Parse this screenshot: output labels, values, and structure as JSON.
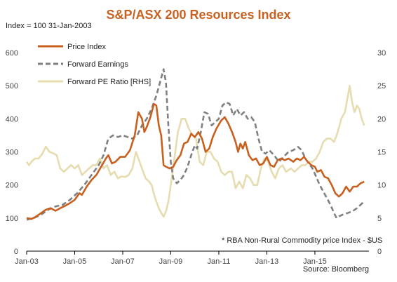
{
  "colors": {
    "title": "#c8611f",
    "price": "#c8611f",
    "earnings": "#808080",
    "pe": "#e6dcb0",
    "axis": "#000000"
  },
  "chart_data": {
    "type": "line",
    "title": "S&P/ASX 200 Resources Index",
    "subtitle": "Index = 100 31-Jan-2003",
    "footnote": "* RBA Non-Rural Commodity price Index - $US",
    "source": "Source: Bloomberg",
    "legend_position": "top-left",
    "grid": false,
    "x_range": [
      2003.0,
      2017.25
    ],
    "x_ticks": [
      {
        "x": 2003.0,
        "label": "Jan-03"
      },
      {
        "x": 2005.0,
        "label": "Jan-05"
      },
      {
        "x": 2007.0,
        "label": "Jan-07"
      },
      {
        "x": 2009.0,
        "label": "Jan-09"
      },
      {
        "x": 2011.0,
        "label": "Jan-11"
      },
      {
        "x": 2013.0,
        "label": "Jan-13"
      },
      {
        "x": 2015.0,
        "label": "Jan-15"
      }
    ],
    "y_left": {
      "range": [
        0,
        600
      ],
      "ticks": [
        0,
        100,
        200,
        300,
        400,
        500,
        600
      ]
    },
    "y_right": {
      "range": [
        0,
        30
      ],
      "ticks": [
        0,
        5,
        10,
        15,
        20,
        25,
        30
      ]
    },
    "series": [
      {
        "name": "Price Index",
        "axis": "left",
        "style": "solid",
        "points": [
          [
            2003.0,
            100
          ],
          [
            2003.2,
            97
          ],
          [
            2003.4,
            105
          ],
          [
            2003.6,
            115
          ],
          [
            2003.8,
            125
          ],
          [
            2004.0,
            130
          ],
          [
            2004.2,
            122
          ],
          [
            2004.4,
            130
          ],
          [
            2004.6,
            137
          ],
          [
            2004.8,
            145
          ],
          [
            2005.0,
            155
          ],
          [
            2005.2,
            175
          ],
          [
            2005.3,
            170
          ],
          [
            2005.5,
            195
          ],
          [
            2005.7,
            215
          ],
          [
            2005.9,
            230
          ],
          [
            2006.1,
            255
          ],
          [
            2006.3,
            280
          ],
          [
            2006.4,
            290
          ],
          [
            2006.55,
            265
          ],
          [
            2006.7,
            270
          ],
          [
            2006.9,
            285
          ],
          [
            2007.1,
            285
          ],
          [
            2007.3,
            305
          ],
          [
            2007.5,
            350
          ],
          [
            2007.65,
            420
          ],
          [
            2007.8,
            400
          ],
          [
            2007.9,
            360
          ],
          [
            2008.0,
            375
          ],
          [
            2008.15,
            405
          ],
          [
            2008.3,
            445
          ],
          [
            2008.4,
            440
          ],
          [
            2008.5,
            380
          ],
          [
            2008.6,
            350
          ],
          [
            2008.7,
            260
          ],
          [
            2008.8,
            255
          ],
          [
            2008.95,
            250
          ],
          [
            2009.1,
            255
          ],
          [
            2009.25,
            275
          ],
          [
            2009.4,
            290
          ],
          [
            2009.55,
            325
          ],
          [
            2009.7,
            330
          ],
          [
            2009.85,
            355
          ],
          [
            2010.0,
            345
          ],
          [
            2010.15,
            360
          ],
          [
            2010.3,
            340
          ],
          [
            2010.45,
            300
          ],
          [
            2010.6,
            310
          ],
          [
            2010.75,
            345
          ],
          [
            2010.9,
            370
          ],
          [
            2011.1,
            395
          ],
          [
            2011.25,
            405
          ],
          [
            2011.4,
            385
          ],
          [
            2011.55,
            360
          ],
          [
            2011.7,
            330
          ],
          [
            2011.8,
            300
          ],
          [
            2011.9,
            325
          ],
          [
            2012.0,
            310
          ],
          [
            2012.1,
            330
          ],
          [
            2012.25,
            290
          ],
          [
            2012.4,
            275
          ],
          [
            2012.55,
            280
          ],
          [
            2012.7,
            260
          ],
          [
            2012.85,
            265
          ],
          [
            2013.0,
            285
          ],
          [
            2013.15,
            260
          ],
          [
            2013.3,
            255
          ],
          [
            2013.45,
            275
          ],
          [
            2013.6,
            280
          ],
          [
            2013.75,
            275
          ],
          [
            2013.9,
            280
          ],
          [
            2014.1,
            270
          ],
          [
            2014.25,
            280
          ],
          [
            2014.4,
            275
          ],
          [
            2014.55,
            285
          ],
          [
            2014.7,
            270
          ],
          [
            2014.85,
            260
          ],
          [
            2015.0,
            255
          ],
          [
            2015.1,
            240
          ],
          [
            2015.25,
            245
          ],
          [
            2015.4,
            225
          ],
          [
            2015.55,
            220
          ],
          [
            2015.7,
            200
          ],
          [
            2015.85,
            175
          ],
          [
            2016.0,
            165
          ],
          [
            2016.15,
            175
          ],
          [
            2016.3,
            195
          ],
          [
            2016.45,
            180
          ],
          [
            2016.6,
            195
          ],
          [
            2016.75,
            195
          ],
          [
            2016.9,
            205
          ],
          [
            2017.05,
            210
          ]
        ]
      },
      {
        "name": "Forward Earnings",
        "axis": "left",
        "style": "dashed",
        "points": [
          [
            2003.0,
            95
          ],
          [
            2003.3,
            100
          ],
          [
            2003.6,
            110
          ],
          [
            2003.9,
            125
          ],
          [
            2004.2,
            135
          ],
          [
            2004.5,
            140
          ],
          [
            2004.8,
            155
          ],
          [
            2005.1,
            175
          ],
          [
            2005.4,
            200
          ],
          [
            2005.7,
            230
          ],
          [
            2006.0,
            260
          ],
          [
            2006.2,
            290
          ],
          [
            2006.4,
            340
          ],
          [
            2006.6,
            350
          ],
          [
            2006.8,
            345
          ],
          [
            2007.0,
            350
          ],
          [
            2007.2,
            345
          ],
          [
            2007.4,
            340
          ],
          [
            2007.6,
            350
          ],
          [
            2007.8,
            380
          ],
          [
            2008.0,
            400
          ],
          [
            2008.2,
            430
          ],
          [
            2008.4,
            470
          ],
          [
            2008.55,
            510
          ],
          [
            2008.7,
            550
          ],
          [
            2008.8,
            510
          ],
          [
            2008.9,
            380
          ],
          [
            2009.0,
            270
          ],
          [
            2009.1,
            220
          ],
          [
            2009.25,
            205
          ],
          [
            2009.4,
            215
          ],
          [
            2009.55,
            230
          ],
          [
            2009.7,
            255
          ],
          [
            2009.85,
            290
          ],
          [
            2010.0,
            320
          ],
          [
            2010.1,
            310
          ],
          [
            2010.25,
            360
          ],
          [
            2010.4,
            420
          ],
          [
            2010.55,
            415
          ],
          [
            2010.7,
            380
          ],
          [
            2010.85,
            390
          ],
          [
            2011.0,
            400
          ],
          [
            2011.15,
            440
          ],
          [
            2011.3,
            450
          ],
          [
            2011.45,
            445
          ],
          [
            2011.6,
            410
          ],
          [
            2011.75,
            430
          ],
          [
            2011.9,
            410
          ],
          [
            2012.05,
            420
          ],
          [
            2012.2,
            400
          ],
          [
            2012.35,
            405
          ],
          [
            2012.5,
            390
          ],
          [
            2012.65,
            340
          ],
          [
            2012.8,
            300
          ],
          [
            2012.95,
            295
          ],
          [
            2013.1,
            305
          ],
          [
            2013.3,
            290
          ],
          [
            2013.5,
            270
          ],
          [
            2013.7,
            285
          ],
          [
            2013.9,
            300
          ],
          [
            2014.1,
            305
          ],
          [
            2014.3,
            315
          ],
          [
            2014.45,
            305
          ],
          [
            2014.6,
            280
          ],
          [
            2014.75,
            265
          ],
          [
            2014.9,
            250
          ],
          [
            2015.05,
            225
          ],
          [
            2015.2,
            200
          ],
          [
            2015.35,
            180
          ],
          [
            2015.5,
            160
          ],
          [
            2015.65,
            140
          ],
          [
            2015.8,
            115
          ],
          [
            2015.9,
            100
          ],
          [
            2016.0,
            105
          ],
          [
            2016.15,
            110
          ],
          [
            2016.35,
            115
          ],
          [
            2016.55,
            120
          ],
          [
            2016.75,
            130
          ],
          [
            2016.9,
            140
          ],
          [
            2017.05,
            150
          ]
        ]
      },
      {
        "name": "Forward PE Ratio [RHS]",
        "axis": "right",
        "style": "solid",
        "points": [
          [
            2003.0,
            13.5
          ],
          [
            2003.1,
            13
          ],
          [
            2003.2,
            13.5
          ],
          [
            2003.35,
            14
          ],
          [
            2003.5,
            14
          ],
          [
            2003.65,
            14.7
          ],
          [
            2003.8,
            15.8
          ],
          [
            2003.95,
            15
          ],
          [
            2004.1,
            14.8
          ],
          [
            2004.25,
            14.5
          ],
          [
            2004.4,
            12.5
          ],
          [
            2004.55,
            12
          ],
          [
            2004.7,
            12.5
          ],
          [
            2004.85,
            13
          ],
          [
            2005.0,
            12.5
          ],
          [
            2005.15,
            13
          ],
          [
            2005.3,
            11.5
          ],
          [
            2005.45,
            12
          ],
          [
            2005.6,
            12.5
          ],
          [
            2005.75,
            13
          ],
          [
            2005.9,
            13
          ],
          [
            2006.05,
            14
          ],
          [
            2006.2,
            12.5
          ],
          [
            2006.35,
            13
          ],
          [
            2006.5,
            11.5
          ],
          [
            2006.65,
            12
          ],
          [
            2006.8,
            11
          ],
          [
            2006.95,
            11.3
          ],
          [
            2007.1,
            11.2
          ],
          [
            2007.25,
            11.5
          ],
          [
            2007.4,
            12.5
          ],
          [
            2007.55,
            15
          ],
          [
            2007.7,
            13.5
          ],
          [
            2007.85,
            12
          ],
          [
            2007.95,
            11
          ],
          [
            2008.1,
            10.5
          ],
          [
            2008.2,
            10
          ],
          [
            2008.35,
            8
          ],
          [
            2008.5,
            6.5
          ],
          [
            2008.6,
            5.8
          ],
          [
            2008.7,
            5.2
          ],
          [
            2008.8,
            6
          ],
          [
            2008.9,
            7.5
          ],
          [
            2009.0,
            10
          ],
          [
            2009.15,
            14
          ],
          [
            2009.3,
            18
          ],
          [
            2009.45,
            20
          ],
          [
            2009.6,
            20
          ],
          [
            2009.75,
            18.5
          ],
          [
            2009.9,
            17.5
          ],
          [
            2010.05,
            17
          ],
          [
            2010.2,
            13.5
          ],
          [
            2010.35,
            13
          ],
          [
            2010.5,
            15
          ],
          [
            2010.65,
            15
          ],
          [
            2010.8,
            14
          ],
          [
            2010.95,
            13.5
          ],
          [
            2011.1,
            12
          ],
          [
            2011.25,
            11.5
          ],
          [
            2011.4,
            12
          ],
          [
            2011.55,
            12
          ],
          [
            2011.7,
            9.5
          ],
          [
            2011.85,
            10.5
          ],
          [
            2012.0,
            9.5
          ],
          [
            2012.15,
            11.5
          ],
          [
            2012.3,
            11
          ],
          [
            2012.45,
            10
          ],
          [
            2012.6,
            10
          ],
          [
            2012.75,
            12.5
          ],
          [
            2012.9,
            14
          ],
          [
            2013.05,
            13.5
          ],
          [
            2013.2,
            12
          ],
          [
            2013.35,
            11
          ],
          [
            2013.5,
            12.5
          ],
          [
            2013.65,
            13
          ],
          [
            2013.8,
            12
          ],
          [
            2014.0,
            12.5
          ],
          [
            2014.15,
            12
          ],
          [
            2014.3,
            12.5
          ],
          [
            2014.45,
            13
          ],
          [
            2014.6,
            13
          ],
          [
            2014.75,
            13.5
          ],
          [
            2014.9,
            13.5
          ],
          [
            2015.05,
            14
          ],
          [
            2015.2,
            15
          ],
          [
            2015.35,
            16.5
          ],
          [
            2015.5,
            17
          ],
          [
            2015.65,
            17
          ],
          [
            2015.8,
            16.5
          ],
          [
            2015.95,
            18
          ],
          [
            2016.1,
            20
          ],
          [
            2016.25,
            21
          ],
          [
            2016.35,
            23
          ],
          [
            2016.45,
            25
          ],
          [
            2016.55,
            22.5
          ],
          [
            2016.65,
            21
          ],
          [
            2016.75,
            22
          ],
          [
            2016.85,
            21.5
          ],
          [
            2016.95,
            20
          ],
          [
            2017.05,
            19
          ]
        ]
      }
    ]
  }
}
